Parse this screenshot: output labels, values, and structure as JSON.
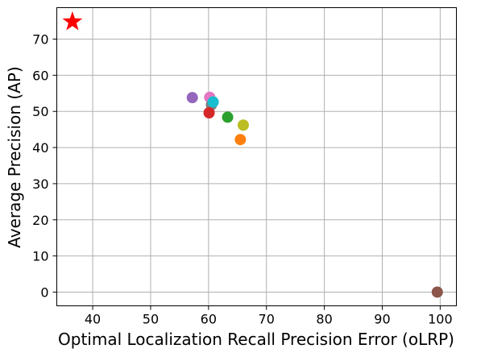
{
  "chart_data": {
    "type": "scatter",
    "title": "",
    "xlabel": "Optimal Localization Recall Precision Error (oLRP)",
    "ylabel": "Average Precision (AP)",
    "xlim": [
      33.8,
      102.8
    ],
    "ylim": [
      -3.8,
      78.7
    ],
    "xticks": [
      40,
      50,
      60,
      70,
      80,
      90,
      100
    ],
    "yticks": [
      0,
      10,
      20,
      30,
      40,
      50,
      60,
      70
    ],
    "grid": true,
    "points": [
      {
        "x": 36.5,
        "y": 74.8,
        "color": "#ff0000",
        "marker": "star"
      },
      {
        "x": 57.2,
        "y": 53.8,
        "color": "#9467bd",
        "marker": "circle"
      },
      {
        "x": 60.2,
        "y": 53.9,
        "color": "#e377c2",
        "marker": "circle"
      },
      {
        "x": 60.5,
        "y": 51.8,
        "color": "#7f7f7f",
        "marker": "circle"
      },
      {
        "x": 60.8,
        "y": 52.6,
        "color": "#17becf",
        "marker": "circle"
      },
      {
        "x": 60.1,
        "y": 49.6,
        "color": "#d62728",
        "marker": "circle"
      },
      {
        "x": 63.3,
        "y": 48.4,
        "color": "#2ca02c",
        "marker": "circle"
      },
      {
        "x": 66.0,
        "y": 46.2,
        "color": "#bcbd22",
        "marker": "circle"
      },
      {
        "x": 65.5,
        "y": 42.2,
        "color": "#ff7f0e",
        "marker": "circle"
      },
      {
        "x": 99.5,
        "y": 0.0,
        "color": "#8c564b",
        "marker": "circle"
      }
    ]
  }
}
